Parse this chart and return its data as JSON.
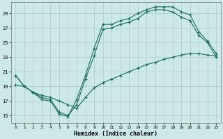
{
  "background_color": "#cce8e8",
  "grid_color": "#aacccc",
  "line_color": "#1a6b5a",
  "xlim": [
    -0.5,
    23.5
  ],
  "ylim": [
    14.0,
    30.5
  ],
  "xticks": [
    0,
    1,
    2,
    3,
    4,
    5,
    6,
    7,
    8,
    9,
    10,
    11,
    12,
    13,
    14,
    15,
    16,
    17,
    18,
    19,
    20,
    21,
    22,
    23
  ],
  "yticks": [
    15,
    17,
    19,
    21,
    23,
    25,
    27,
    29
  ],
  "xlabel": "Humidex (Indice chaleur)",
  "curve1_x": [
    0,
    1,
    2,
    3,
    4,
    5,
    6,
    7,
    8,
    9,
    10,
    11,
    12,
    13,
    14,
    15,
    16,
    17,
    18,
    19,
    20,
    21,
    22,
    23
  ],
  "curve1_y": [
    20.5,
    19.0,
    18.2,
    17.2,
    17.0,
    15.2,
    14.9,
    17.2,
    20.5,
    24.2,
    27.5,
    27.5,
    28.0,
    28.3,
    29.0,
    29.5,
    29.9,
    29.9,
    29.9,
    29.2,
    28.8,
    26.5,
    25.2,
    23.5
  ],
  "curve2_x": [
    0,
    1,
    2,
    3,
    4,
    5,
    6,
    7,
    8,
    9,
    10,
    11,
    12,
    13,
    14,
    15,
    16,
    17,
    18,
    19,
    20,
    21,
    22,
    23
  ],
  "curve2_y": [
    20.5,
    19.0,
    18.2,
    17.5,
    17.2,
    15.5,
    15.0,
    16.5,
    20.0,
    23.2,
    26.8,
    27.0,
    27.5,
    27.8,
    28.3,
    29.2,
    29.5,
    29.5,
    29.2,
    28.5,
    28.0,
    26.0,
    25.0,
    23.0
  ],
  "curve3_x": [
    0,
    1,
    2,
    3,
    4,
    5,
    6,
    7,
    8,
    9,
    10,
    11,
    12,
    13,
    14,
    15,
    16,
    17,
    18,
    19,
    20,
    21,
    22,
    23
  ],
  "curve3_y": [
    19.2,
    19.0,
    18.2,
    17.8,
    17.5,
    17.0,
    16.5,
    16.0,
    17.5,
    18.8,
    19.5,
    20.0,
    20.5,
    21.0,
    21.5,
    22.0,
    22.3,
    22.7,
    23.0,
    23.3,
    23.5,
    23.5,
    23.3,
    23.2
  ]
}
